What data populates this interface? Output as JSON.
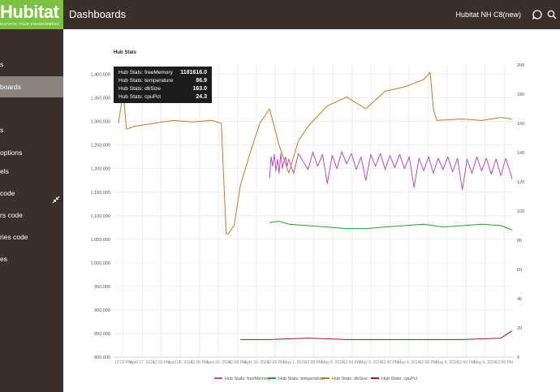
{
  "header": {
    "logo_text": "Hubitat",
    "logo_tagline": "ELEVATE YOUR ENVIRONMENT",
    "title": "Dashboards",
    "hub_name": "Hubitat NH C8(new)",
    "icons": [
      "chat-icon",
      "search-icon"
    ]
  },
  "sidebar": {
    "items": [
      {
        "label": "s"
      },
      {
        "label": "boards",
        "active": true
      },
      {
        "label": "s"
      },
      {
        "label": "options"
      },
      {
        "label": "els"
      },
      {
        "label": "code"
      },
      {
        "label": "rs code"
      },
      {
        "label": "ries code"
      },
      {
        "label": "es"
      }
    ]
  },
  "tooltip": {
    "rows": [
      {
        "label": "Hub Stats: freeMemory",
        "value": "1181616.0"
      },
      {
        "label": "Hub Stats: temperature",
        "value": "86.9"
      },
      {
        "label": "Hub Stats: dbSize",
        "value": "163.0"
      },
      {
        "label": "Hub Stats: cpuPct",
        "value": "24.3"
      }
    ]
  },
  "chart_data": {
    "type": "line",
    "title": "Hub Stats",
    "x_tick_labels": [
      "12:00 PM",
      "April 27, 2024",
      "12:00 PM",
      "April 28, 2024",
      "12:00 PM",
      "April 29, 2024",
      "12:00 PM",
      "April 30, 2024",
      "12:00 PM",
      "May 1, 2024",
      "12:00 PM",
      "May 2, 2024",
      "12:00 PM",
      "May 3, 2024",
      "12:00 PM",
      "May 4, 2024",
      "12:00 PM",
      "May 5, 2024",
      "12:00 PM",
      "May 6, 2024",
      "12:00 PM"
    ],
    "x_range": [
      "2024-04-26T11:00",
      "2024-05-06T20:00"
    ],
    "y_left": {
      "ticks": [
        800000,
        850000,
        900000,
        950000,
        1000000,
        1050000,
        1100000,
        1150000,
        1200000,
        1250000,
        1300000,
        1350000,
        1400000
      ],
      "range": [
        800000,
        1420000
      ]
    },
    "y_right": {
      "ticks": [
        0,
        20,
        40,
        60,
        80,
        100,
        120,
        140,
        160,
        180,
        200
      ],
      "range": [
        0,
        200
      ]
    },
    "grid": true,
    "legend_position": "bottom",
    "series": [
      {
        "name": "Hub Stats: freeMemory",
        "axis": "left",
        "color": "#b54fc4",
        "x": [
          "2024-04-30T12:00",
          "2024-04-30T13:00",
          "2024-04-30T14:00",
          "2024-04-30T15:00",
          "2024-04-30T16:00",
          "2024-04-30T17:00",
          "2024-04-30T18:00",
          "2024-04-30T19:00",
          "2024-04-30T20:00",
          "2024-04-30T21:00",
          "2024-04-30T22:00",
          "2024-04-30T23:00",
          "2024-05-01T00:00",
          "2024-05-01T03:00",
          "2024-05-01T06:00",
          "2024-05-01T09:00",
          "2024-05-01T12:00",
          "2024-05-01T15:00",
          "2024-05-01T18:00",
          "2024-05-01T21:00",
          "2024-05-02T00:00",
          "2024-05-02T03:00",
          "2024-05-02T06:00",
          "2024-05-02T09:00",
          "2024-05-02T12:00",
          "2024-05-02T15:00",
          "2024-05-02T18:00",
          "2024-05-02T21:00",
          "2024-05-03T00:00",
          "2024-05-03T03:00",
          "2024-05-03T06:00",
          "2024-05-03T09:00",
          "2024-05-03T12:00",
          "2024-05-03T15:00",
          "2024-05-03T18:00",
          "2024-05-03T21:00",
          "2024-05-04T00:00",
          "2024-05-04T03:00",
          "2024-05-04T06:00",
          "2024-05-04T09:00",
          "2024-05-04T12:00",
          "2024-05-04T15:00",
          "2024-05-04T18:00",
          "2024-05-04T21:00",
          "2024-05-05T00:00",
          "2024-05-05T03:00",
          "2024-05-05T06:00",
          "2024-05-05T09:00",
          "2024-05-05T12:00",
          "2024-05-05T15:00",
          "2024-05-05T18:00",
          "2024-05-05T21:00",
          "2024-05-06T00:00",
          "2024-05-06T03:00",
          "2024-05-06T06:00",
          "2024-05-06T09:00",
          "2024-05-06T12:00",
          "2024-05-06T15:00",
          "2024-05-06T18:00",
          "2024-05-06T19:00"
        ],
        "y": [
          1180000,
          1225000,
          1205000,
          1230000,
          1195000,
          1220000,
          1190000,
          1232000,
          1200000,
          1215000,
          1225000,
          1205000,
          1220000,
          1190000,
          1232000,
          1215000,
          1198000,
          1235000,
          1205000,
          1230000,
          1168000,
          1228000,
          1200000,
          1236000,
          1210000,
          1232000,
          1198000,
          1225000,
          1175000,
          1230000,
          1205000,
          1232000,
          1198000,
          1228000,
          1202000,
          1230000,
          1200000,
          1225000,
          1160000,
          1222000,
          1195000,
          1225000,
          1190000,
          1222000,
          1198000,
          1225000,
          1193000,
          1222000,
          1155000,
          1220000,
          1190000,
          1225000,
          1195000,
          1222000,
          1188000,
          1220000,
          1185000,
          1222000,
          1190000,
          1178000
        ]
      },
      {
        "name": "Hub Stats: temperature",
        "axis": "right",
        "color": "#2e9a2e",
        "x": [
          "2024-04-30T12:00",
          "2024-04-30T18:00",
          "2024-05-01T00:00",
          "2024-05-01T12:00",
          "2024-05-02T00:00",
          "2024-05-02T12:00",
          "2024-05-03T00:00",
          "2024-05-03T12:00",
          "2024-05-04T00:00",
          "2024-05-04T12:00",
          "2024-05-05T00:00",
          "2024-05-05T12:00",
          "2024-05-06T00:00",
          "2024-05-06T12:00",
          "2024-05-06T19:00"
        ],
        "y": [
          92,
          93,
          91,
          90,
          89,
          88,
          88,
          89,
          90,
          91,
          89,
          90,
          91,
          90,
          87
        ]
      },
      {
        "name": "Hub Stats: dbSize",
        "axis": "right",
        "color": "#c07a2c",
        "x": [
          "2024-04-26T14:00",
          "2024-04-26T17:00",
          "2024-04-26T19:00",
          "2024-04-27T00:00",
          "2024-04-27T12:00",
          "2024-04-28T00:00",
          "2024-04-28T12:00",
          "2024-04-29T00:00",
          "2024-04-29T06:00",
          "2024-04-29T09:00",
          "2024-04-29T10:00",
          "2024-04-29T14:00",
          "2024-04-29T18:00",
          "2024-04-30T00:00",
          "2024-04-30T06:00",
          "2024-04-30T12:00",
          "2024-04-30T18:00",
          "2024-05-01T00:00",
          "2024-05-01T06:00",
          "2024-05-01T12:00",
          "2024-05-02T00:00",
          "2024-05-02T12:00",
          "2024-05-03T00:00",
          "2024-05-03T12:00",
          "2024-05-04T00:00",
          "2024-05-04T12:00",
          "2024-05-04T16:00",
          "2024-05-04T18:00",
          "2024-05-04T20:00",
          "2024-05-05T12:00",
          "2024-05-06T00:00",
          "2024-05-06T12:00",
          "2024-05-06T19:00"
        ],
        "y": [
          160,
          182,
          156,
          158,
          160,
          162,
          161,
          162,
          160,
          85,
          84,
          90,
          118,
          140,
          160,
          170,
          145,
          126,
          148,
          158,
          172,
          178,
          170,
          182,
          185,
          190,
          195,
          170,
          162,
          163,
          162,
          164,
          163
        ]
      },
      {
        "name": "Hub Stats: cpuPct",
        "axis": "right",
        "color": "#9b1a1a",
        "x": [
          "2024-04-29T18:00",
          "2024-04-30T12:00",
          "2024-05-01T12:00",
          "2024-05-02T12:00",
          "2024-05-03T12:00",
          "2024-05-04T12:00",
          "2024-05-05T12:00",
          "2024-05-06T12:00",
          "2024-05-06T19:00"
        ],
        "y": [
          12,
          12,
          13,
          12,
          12,
          12,
          12,
          13,
          18
        ]
      }
    ]
  }
}
